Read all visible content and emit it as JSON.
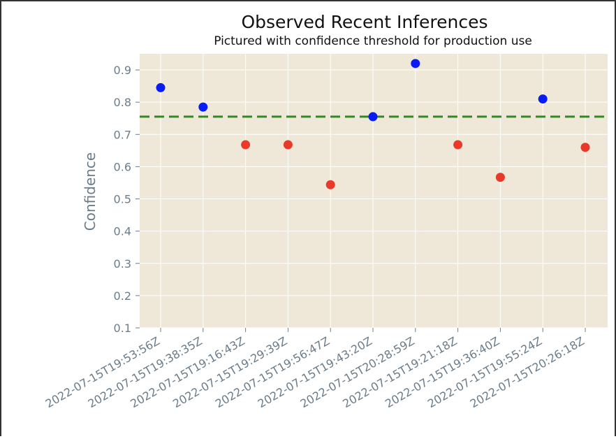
{
  "chart_data": {
    "type": "scatter",
    "title": "Observed Recent Inferences",
    "subtitle": "Pictured with confidence threshold for production use",
    "xlabel": "",
    "ylabel": "Confidence",
    "categories": [
      "2022-07-15T19:53:56Z",
      "2022-07-15T19:38:35Z",
      "2022-07-15T19:16:43Z",
      "2022-07-15T19:29:39Z",
      "2022-07-15T19:56:47Z",
      "2022-07-15T19:43:20Z",
      "2022-07-15T20:28:59Z",
      "2022-07-15T19:21:18Z",
      "2022-07-15T19:36:40Z",
      "2022-07-15T19:55:24Z",
      "2022-07-15T20:26:18Z"
    ],
    "values": [
      0.845,
      0.785,
      0.668,
      0.668,
      0.544,
      0.755,
      0.92,
      0.668,
      0.567,
      0.81,
      0.66
    ],
    "threshold": 0.755,
    "ylim": [
      0.1,
      0.95
    ],
    "yticks": [
      "0.1",
      "0.2",
      "0.3",
      "0.4",
      "0.5",
      "0.6",
      "0.7",
      "0.8",
      "0.9"
    ],
    "grid": true,
    "colors": {
      "above_threshold": "#0a1cf5",
      "below_threshold": "#e8392a",
      "threshold_line": "#2e8b1e",
      "plot_background": "#efe8d8",
      "grid": "#ffffff"
    }
  }
}
